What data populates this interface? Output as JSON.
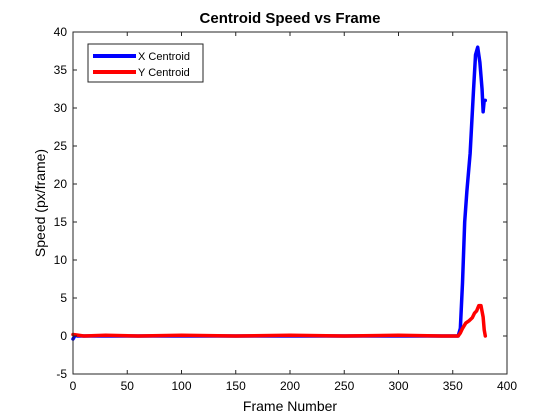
{
  "chart_data": {
    "type": "line",
    "title": "Centroid Speed vs Frame",
    "xlabel": "Frame Number",
    "ylabel": "Speed (px/frame)",
    "xlim": [
      0,
      400
    ],
    "ylim": [
      -5,
      40
    ],
    "xticks": [
      0,
      50,
      100,
      150,
      200,
      250,
      300,
      350,
      400
    ],
    "yticks": [
      -5,
      0,
      5,
      10,
      15,
      20,
      25,
      30,
      35,
      40
    ],
    "grid": false,
    "legend": {
      "placement": "top-left"
    },
    "series": [
      {
        "name": "X Centroid",
        "color": "#0000ff",
        "x": [
          0,
          2,
          4,
          10,
          50,
          100,
          150,
          200,
          250,
          300,
          350,
          355,
          357,
          359,
          361,
          363,
          366,
          369,
          371,
          373,
          375,
          377,
          378,
          379,
          380
        ],
        "y": [
          -0.4,
          0.1,
          0.0,
          0.0,
          0.0,
          0.0,
          0.0,
          0.0,
          0.0,
          0.0,
          0.0,
          0.0,
          1.0,
          7.0,
          15.0,
          19.0,
          24.0,
          32.0,
          37.0,
          38.0,
          36.0,
          32.5,
          29.5,
          31.0,
          31.0
        ]
      },
      {
        "name": "Y Centroid",
        "color": "#ff0000",
        "x": [
          0,
          10,
          30,
          60,
          100,
          150,
          200,
          250,
          300,
          340,
          350,
          355,
          357,
          359,
          362,
          365,
          368,
          370,
          372,
          374,
          376,
          378,
          379,
          380
        ],
        "y": [
          0.2,
          0.0,
          0.1,
          0.0,
          0.1,
          0.0,
          0.1,
          0.0,
          0.1,
          0.0,
          0.0,
          0.0,
          0.4,
          1.0,
          1.7,
          2.0,
          2.4,
          3.0,
          3.3,
          4.0,
          4.0,
          2.5,
          0.8,
          0.0
        ]
      }
    ]
  }
}
